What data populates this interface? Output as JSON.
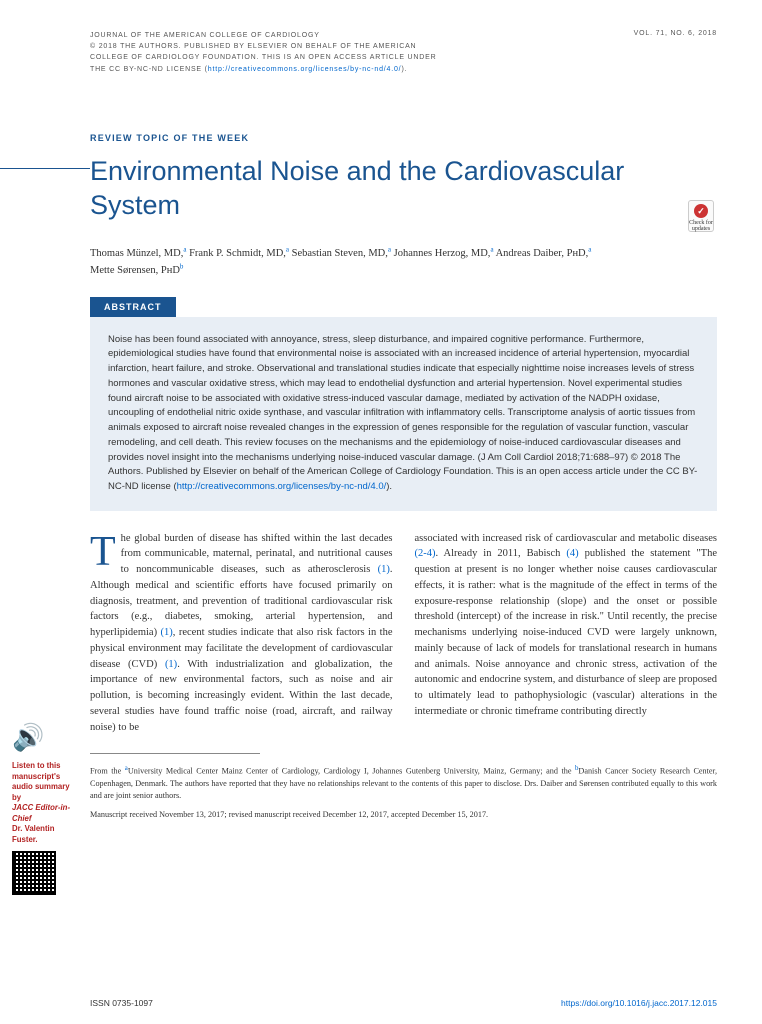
{
  "meta": {
    "journal": "JOURNAL OF THE AMERICAN COLLEGE OF CARDIOLOGY",
    "copyright1": "© 2018 THE AUTHORS. PUBLISHED BY ELSEVIER ON BEHALF OF THE AMERICAN",
    "copyright2": "COLLEGE OF CARDIOLOGY FOUNDATION. THIS IS AN OPEN ACCESS ARTICLE UNDER",
    "copyright3": "THE CC BY-NC-ND LICENSE (",
    "license_url": "http://creativecommons.org/licenses/by-nc-nd/4.0/",
    "copyright_close": ").",
    "vol": "VOL. 71, NO. 6, 2018"
  },
  "section_label": "REVIEW TOPIC OF THE WEEK",
  "title": "Environmental Noise and the Cardiovascular System",
  "badge": "Check for updates",
  "authors_html": "Thomas Münzel, MD,ᵃ Frank P. Schmidt, MD,ᵃ Sebastian Steven, MD,ᵃ Johannes Herzog, MD,ᵃ Andreas Daiber, PʜD,ᵃ Mette Sørensen, PʜDᵇ",
  "authors": [
    {
      "name": "Thomas Münzel, MD,",
      "affil": "a"
    },
    {
      "name": " Frank P. Schmidt, MD,",
      "affil": "a"
    },
    {
      "name": " Sebastian Steven, MD,",
      "affil": "a"
    },
    {
      "name": " Johannes Herzog, MD,",
      "affil": "a"
    },
    {
      "name": " Andreas Daiber, PʜD,",
      "affil": "a"
    },
    {
      "name": " Mette Sørensen, PʜD",
      "affil": "b"
    }
  ],
  "abstract_label": "ABSTRACT",
  "abstract_text": "Noise has been found associated with annoyance, stress, sleep disturbance, and impaired cognitive performance. Furthermore, epidemiological studies have found that environmental noise is associated with an increased incidence of arterial hypertension, myocardial infarction, heart failure, and stroke. Observational and translational studies indicate that especially nighttime noise increases levels of stress hormones and vascular oxidative stress, which may lead to endothelial dysfunction and arterial hypertension. Novel experimental studies found aircraft noise to be associated with oxidative stress-induced vascular damage, mediated by activation of the NADPH oxidase, uncoupling of endothelial nitric oxide synthase, and vascular infiltration with inflammatory cells. Transcriptome analysis of aortic tissues from animals exposed to aircraft noise revealed changes in the expression of genes responsible for the regulation of vascular function, vascular remodeling, and cell death. This review focuses on the mechanisms and the epidemiology of noise-induced cardiovascular diseases and provides novel insight into the mechanisms underlying noise-induced vascular damage. (J Am Coll Cardiol 2018;71:688–97) © 2018 The Authors. Published by Elsevier on behalf of the American College of Cardiology Foundation. This is an open access article under the CC BY-NC-ND license (",
  "abstract_link": "http://creativecommons.org/licenses/by-nc-nd/4.0/",
  "abstract_close": ").",
  "body": {
    "col1_first": "T",
    "col1_rest": "he global burden of disease has shifted within the last decades from communicable, maternal, perinatal, and nutritional causes to noncommunicable diseases, such as atherosclerosis ",
    "col1_ref1": "(1)",
    "col1_p2": ". Although medical and scientific efforts have focused primarily on diagnosis, treatment, and prevention of traditional cardiovascular risk factors (e.g., diabetes, smoking, arterial hypertension, and hyperlipidemia) ",
    "col1_ref2": "(1)",
    "col1_p3": ", recent studies indicate that also risk factors in the physical environment may facilitate the development of cardiovascular disease (CVD) ",
    "col1_ref3": "(1)",
    "col1_p4": ". With industrialization and globalization, the importance of new environmental factors, such as noise and air pollution, is becoming increasingly evident. Within the last decade, several studies have found traffic noise (road, aircraft, and railway noise) to be",
    "col2_p1": "associated with increased risk of cardiovascular and metabolic diseases ",
    "col2_ref1": "(2-4)",
    "col2_p2": ". Already in 2011, Babisch ",
    "col2_ref2": "(4)",
    "col2_p3": " published the statement \"The question at present is no longer whether noise causes cardiovascular effects, it is rather: what is the magnitude of the effect in terms of the exposure-response relationship (slope) and the onset or possible threshold (intercept) of the increase in risk.\" Until recently, the precise mechanisms underlying noise-induced CVD were largely unknown, mainly because of lack of models for translational research in humans and animals. Noise annoyance and chronic stress, activation of the autonomic and endocrine system, and disturbance of sleep are proposed to ultimately lead to pathophysiologic (vascular) alterations in the intermediate or chronic timeframe contributing directly"
  },
  "footnote": {
    "from": "From the ",
    "a": "a",
    "affil_a": "University Medical Center Mainz Center of Cardiology, Cardiology I, Johannes Gutenberg University, Mainz, Germany; and the ",
    "b": "b",
    "affil_b": "Danish Cancer Society Research Center, Copenhagen, Denmark. The authors have reported that they have no relationships relevant to the contents of this paper to disclose. Drs. Daiber and Sørensen contributed equally to this work and are joint senior authors.",
    "dates": "Manuscript received November 13, 2017; revised manuscript received December 12, 2017, accepted December 15, 2017."
  },
  "issn": "ISSN 0735-1097",
  "doi": "https://doi.org/10.1016/j.jacc.2017.12.015",
  "audio": {
    "line1": "Listen to this manuscript's",
    "line2": "audio summary by",
    "line3": "JACC Editor-in-Chief",
    "line4": "Dr. Valentin Fuster."
  },
  "colors": {
    "brand": "#1a5490",
    "link": "#0066cc",
    "abstract_bg": "#e8eef5",
    "audio_red": "#b22222"
  }
}
